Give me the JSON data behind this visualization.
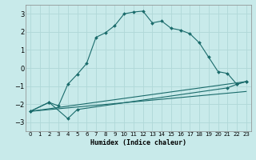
{
  "xlabel": "Humidex (Indice chaleur)",
  "background_color": "#c8eaea",
  "grid_color": "#b0d8d8",
  "line_color": "#1a6b6b",
  "xlim": [
    -0.5,
    23.5
  ],
  "ylim": [
    -3.5,
    3.5
  ],
  "yticks": [
    -3,
    -2,
    -1,
    0,
    1,
    2,
    3
  ],
  "xticks": [
    0,
    1,
    2,
    3,
    4,
    5,
    6,
    7,
    8,
    9,
    10,
    11,
    12,
    13,
    14,
    15,
    16,
    17,
    18,
    19,
    20,
    21,
    22,
    23
  ],
  "curve1_x": [
    0,
    2,
    3,
    4,
    5,
    6,
    7,
    8,
    9,
    10,
    11,
    12,
    13,
    14,
    15,
    16,
    17,
    18,
    19,
    20,
    21,
    22,
    23
  ],
  "curve1_y": [
    -2.4,
    -1.9,
    -2.1,
    -0.9,
    -0.35,
    0.25,
    1.7,
    1.95,
    2.35,
    3.0,
    3.1,
    3.15,
    2.5,
    2.6,
    2.2,
    2.1,
    1.9,
    1.4,
    0.6,
    -0.2,
    -0.3,
    -0.9,
    -0.75
  ],
  "curve2_x": [
    0,
    2,
    4,
    5,
    21,
    22,
    23
  ],
  "curve2_y": [
    -2.4,
    -1.9,
    -2.8,
    -2.3,
    -1.1,
    -0.9,
    -0.75
  ],
  "curve3_x": [
    0,
    23
  ],
  "curve3_y": [
    -2.4,
    -0.75
  ],
  "curve4_x": [
    0,
    23
  ],
  "curve4_y": [
    -2.4,
    -1.3
  ]
}
